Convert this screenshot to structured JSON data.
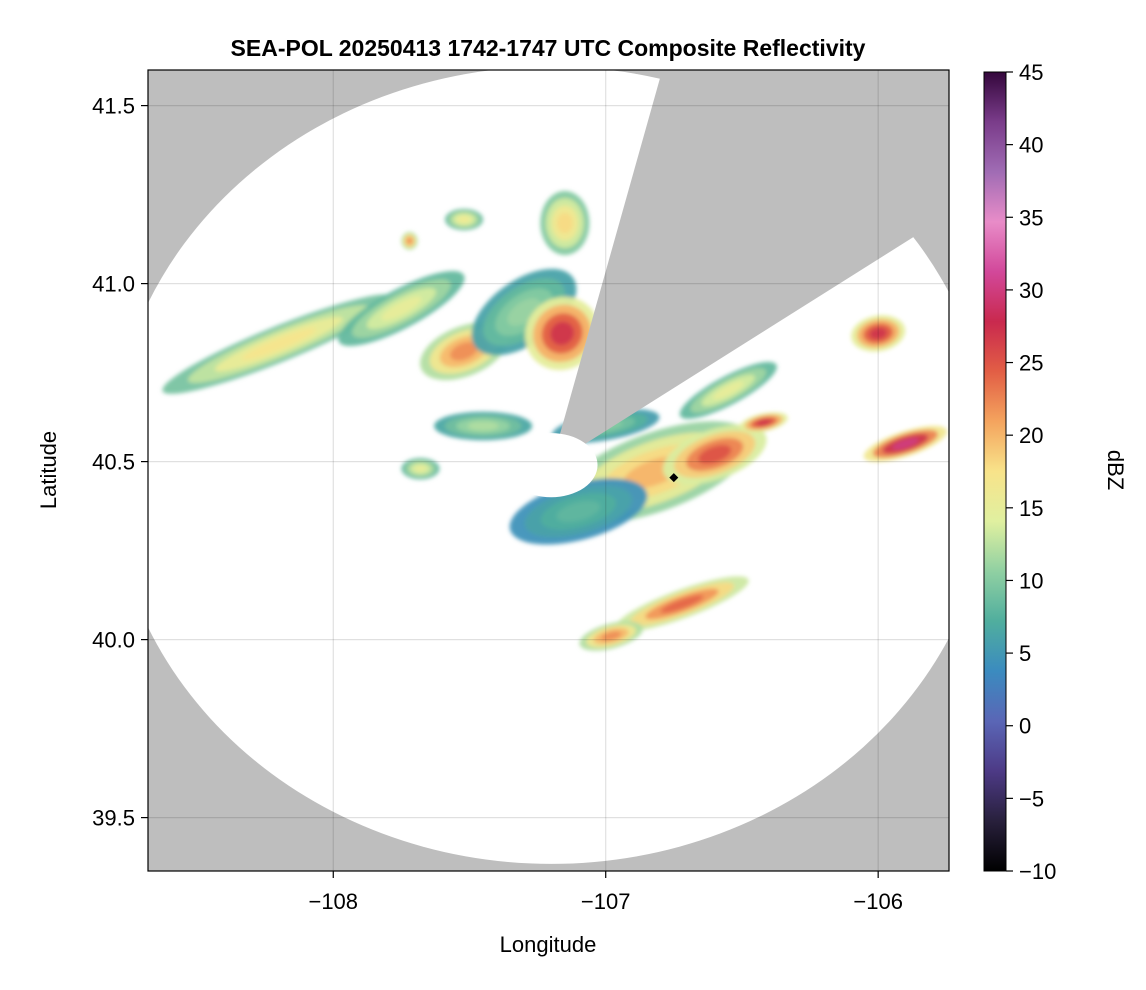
{
  "figure": {
    "title": "SEA-POL 20250413 1742-1747 UTC Composite Reflectivity",
    "xlabel": "Longitude",
    "ylabel": "Latitude",
    "colorbar_label": "dBZ"
  },
  "chart_data": {
    "type": "heatmap",
    "title": "SEA-POL 20250413 1742-1747 UTC Composite Reflectivity",
    "xlabel": "Longitude",
    "ylabel": "Latitude",
    "xlim": [
      -108.68,
      -105.74
    ],
    "ylim": [
      39.35,
      41.6
    ],
    "x_ticks": [
      -108,
      -107,
      -106
    ],
    "x_tick_labels": [
      "−108",
      "−107",
      "−106"
    ],
    "y_ticks": [
      39.5,
      40.0,
      40.5,
      41.0,
      41.5
    ],
    "y_tick_labels": [
      "39.5",
      "40.0",
      "40.5",
      "41.0",
      "41.5"
    ],
    "grid": true,
    "background_color": "#bebebe",
    "coverage_color": "#ffffff",
    "radar": {
      "center": [
        -107.2,
        40.49
      ],
      "range_lon_deg": 1.62,
      "range_lat_deg": 1.12,
      "inner_radius_lon_deg": 0.17,
      "inner_radius_lat_deg": 0.09,
      "blocked_sectors": [
        {
          "from_azimuth_deg": 15.7,
          "to_azimuth_deg": 57.8
        }
      ]
    },
    "marker": {
      "lon": -106.75,
      "lat": 40.455,
      "shape": "diamond",
      "color": "#000000"
    },
    "colorbar": {
      "label": "dBZ",
      "min": -10,
      "max": 45,
      "ticks": [
        -10,
        -5,
        0,
        5,
        10,
        15,
        20,
        25,
        30,
        35,
        40,
        45
      ],
      "tick_labels": [
        "−10",
        "−5",
        "0",
        "5",
        "10",
        "15",
        "20",
        "25",
        "30",
        "35",
        "40",
        "45"
      ],
      "colors": [
        "#000000",
        "#28203c",
        "#4d3a86",
        "#5a66b6",
        "#3b8bbf",
        "#50ae9e",
        "#90d0a2",
        "#e0f0a0",
        "#f8e38a",
        "#f4a45e",
        "#e25e45",
        "#c9294e",
        "#d2489a",
        "#e88cc8",
        "#a06cb4",
        "#7a3c8a",
        "#34073c"
      ]
    },
    "echo_cells": [
      {
        "lon": -108.2,
        "lat": 40.83,
        "sx": 0.46,
        "sy": 0.05,
        "rot": -22,
        "peak": 17
      },
      {
        "lon": -107.75,
        "lat": 40.93,
        "sx": 0.26,
        "sy": 0.055,
        "rot": -28,
        "peak": 15
      },
      {
        "lon": -107.52,
        "lat": 40.81,
        "sx": 0.17,
        "sy": 0.07,
        "rot": -22,
        "peak": 22
      },
      {
        "lon": -107.3,
        "lat": 40.92,
        "sx": 0.22,
        "sy": 0.09,
        "rot": -35,
        "peak": 11
      },
      {
        "lon": -107.16,
        "lat": 40.86,
        "sx": 0.14,
        "sy": 0.1,
        "rot": -40,
        "peak": 27
      },
      {
        "lon": -107.15,
        "lat": 41.17,
        "sx": 0.09,
        "sy": 0.09,
        "rot": 0,
        "peak": 18
      },
      {
        "lon": -107.52,
        "lat": 41.18,
        "sx": 0.07,
        "sy": 0.03,
        "rot": 0,
        "peak": 16
      },
      {
        "lon": -107.72,
        "lat": 41.12,
        "sx": 0.03,
        "sy": 0.025,
        "rot": 0,
        "peak": 22
      },
      {
        "lon": -107.0,
        "lat": 40.6,
        "sx": 0.2,
        "sy": 0.04,
        "rot": -10,
        "peak": 10
      },
      {
        "lon": -106.82,
        "lat": 40.47,
        "sx": 0.38,
        "sy": 0.11,
        "rot": -20,
        "peak": 20
      },
      {
        "lon": -106.6,
        "lat": 40.52,
        "sx": 0.2,
        "sy": 0.07,
        "rot": -20,
        "peak": 25
      },
      {
        "lon": -107.1,
        "lat": 40.36,
        "sx": 0.26,
        "sy": 0.08,
        "rot": -15,
        "peak": 8
      },
      {
        "lon": -106.42,
        "lat": 40.61,
        "sx": 0.09,
        "sy": 0.025,
        "rot": -12,
        "peak": 27
      },
      {
        "lon": -106.55,
        "lat": 40.7,
        "sx": 0.2,
        "sy": 0.04,
        "rot": -28,
        "peak": 15
      },
      {
        "lon": -106.0,
        "lat": 40.86,
        "sx": 0.1,
        "sy": 0.05,
        "rot": -10,
        "peak": 27
      },
      {
        "lon": -105.9,
        "lat": 40.55,
        "sx": 0.16,
        "sy": 0.035,
        "rot": -18,
        "peak": 30
      },
      {
        "lon": -106.72,
        "lat": 40.1,
        "sx": 0.26,
        "sy": 0.04,
        "rot": -20,
        "peak": 24
      },
      {
        "lon": -106.98,
        "lat": 40.01,
        "sx": 0.12,
        "sy": 0.035,
        "rot": -15,
        "peak": 22
      },
      {
        "lon": -107.45,
        "lat": 40.6,
        "sx": 0.18,
        "sy": 0.04,
        "rot": 0,
        "peak": 12
      },
      {
        "lon": -107.68,
        "lat": 40.48,
        "sx": 0.07,
        "sy": 0.03,
        "rot": 0,
        "peak": 15
      }
    ]
  }
}
